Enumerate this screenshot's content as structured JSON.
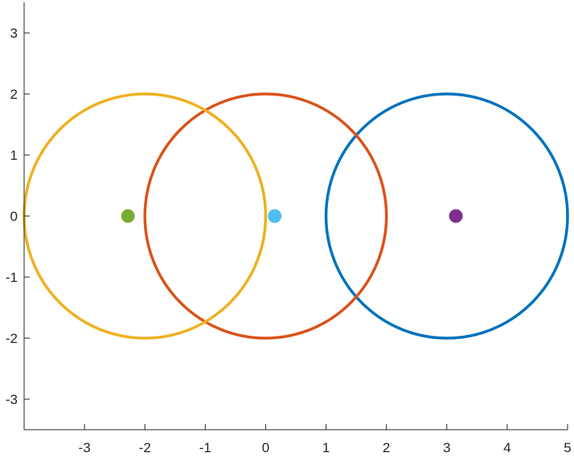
{
  "chart_data": {
    "type": "scatter",
    "title": "",
    "xlabel": "",
    "ylabel": "",
    "xlim": [
      -4,
      5
    ],
    "ylim": [
      -3.5,
      3.5
    ],
    "grid": false,
    "box": false,
    "xticks": [
      -3,
      -2,
      -1,
      0,
      1,
      2,
      3,
      4,
      5
    ],
    "yticks": [
      -3,
      -2,
      -1,
      0,
      1,
      2,
      3
    ],
    "xtick_labels": [
      "-3",
      "-2",
      "-1",
      "0",
      "1",
      "2",
      "3",
      "4",
      "5"
    ],
    "ytick_labels": [
      "-3",
      "-2",
      "-1",
      "0",
      "1",
      "2",
      "3"
    ],
    "circles": [
      {
        "cx": 3,
        "cy": 0,
        "r": 2,
        "color": "#0072BD"
      },
      {
        "cx": 0,
        "cy": 0,
        "r": 2,
        "color": "#D95319"
      },
      {
        "cx": -2,
        "cy": 0,
        "r": 2,
        "color": "#EDB120"
      }
    ],
    "points": [
      {
        "x": -2.28,
        "y": 0,
        "color": "#77AC30"
      },
      {
        "x": 0.15,
        "y": 0,
        "color": "#4DBEEE"
      },
      {
        "x": 3.15,
        "y": 0,
        "color": "#7E2F8E"
      }
    ]
  }
}
